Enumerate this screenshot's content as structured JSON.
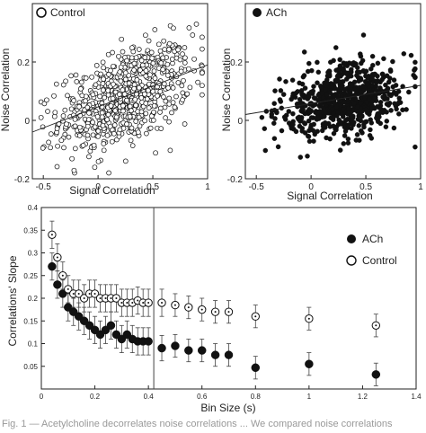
{
  "caption_fragment": "Fig. 1 — Acetylcholine decorrelates noise correlations ... We compared noise correlations",
  "chart_data": [
    {
      "type": "scatter",
      "legend": "Control",
      "marker": "open-circle",
      "xlabel": "Signal Correlation",
      "ylabel": "Noise Correlation",
      "xlim": [
        -0.6,
        1.0
      ],
      "ylim": [
        -0.2,
        0.4
      ],
      "xticks": [
        -0.5,
        0,
        0.5,
        1
      ],
      "yticks": [
        -0.2,
        0,
        0.2
      ],
      "fit_line": {
        "x": [
          -0.6,
          1.0
        ],
        "y": [
          -0.04,
          0.19
        ]
      },
      "points": {
        "n": 700,
        "x_center": 0.25,
        "x_sd": 0.3,
        "y_center": 0.08,
        "y_sd": 0.08,
        "slope": 0.14
      }
    },
    {
      "type": "scatter",
      "legend": "ACh",
      "marker": "filled-circle",
      "xlabel": "Signal Correlation",
      "ylabel": "Noise Correlation",
      "xlim": [
        -0.6,
        1.0
      ],
      "ylim": [
        -0.2,
        0.4
      ],
      "xticks": [
        -0.5,
        0,
        0.5,
        1
      ],
      "yticks": [
        -0.2,
        0,
        0.2
      ],
      "fit_line": {
        "x": [
          -0.6,
          1.0
        ],
        "y": [
          0.02,
          0.12
        ]
      },
      "points": {
        "n": 700,
        "x_center": 0.3,
        "x_sd": 0.28,
        "y_center": 0.07,
        "y_sd": 0.06,
        "slope": 0.06
      }
    },
    {
      "type": "line",
      "xlabel": "Bin Size (s)",
      "ylabel": "Correlations' Slope",
      "xlim": [
        0,
        1.4
      ],
      "ylim": [
        0,
        0.4
      ],
      "xticks": [
        0,
        0.2,
        0.4,
        0.6,
        0.8,
        1,
        1.2,
        1.4
      ],
      "yticks": [
        0.05,
        0.1,
        0.15,
        0.2,
        0.25,
        0.3,
        0.35,
        0.4
      ],
      "vline_x": 0.42,
      "series": [
        {
          "name": "ACh",
          "marker": "filled-circle",
          "x": [
            0.04,
            0.06,
            0.08,
            0.1,
            0.12,
            0.14,
            0.16,
            0.18,
            0.2,
            0.22,
            0.24,
            0.26,
            0.28,
            0.3,
            0.32,
            0.34,
            0.36,
            0.38,
            0.4,
            0.45,
            0.5,
            0.55,
            0.6,
            0.65,
            0.7,
            0.8,
            1.0,
            1.25
          ],
          "y": [
            0.27,
            0.23,
            0.21,
            0.18,
            0.17,
            0.16,
            0.15,
            0.14,
            0.13,
            0.12,
            0.13,
            0.14,
            0.12,
            0.11,
            0.12,
            0.11,
            0.105,
            0.105,
            0.105,
            0.09,
            0.095,
            0.085,
            0.085,
            0.075,
            0.075,
            0.047,
            0.055,
            0.032
          ],
          "err": [
            0.03,
            0.03,
            0.03,
            0.03,
            0.03,
            0.03,
            0.03,
            0.03,
            0.03,
            0.03,
            0.03,
            0.03,
            0.03,
            0.03,
            0.03,
            0.03,
            0.03,
            0.03,
            0.03,
            0.028,
            0.025,
            0.025,
            0.025,
            0.025,
            0.025,
            0.025,
            0.025,
            0.025
          ]
        },
        {
          "name": "Control",
          "marker": "open-circle",
          "x": [
            0.04,
            0.06,
            0.08,
            0.1,
            0.12,
            0.14,
            0.16,
            0.18,
            0.2,
            0.22,
            0.24,
            0.26,
            0.28,
            0.3,
            0.32,
            0.34,
            0.36,
            0.38,
            0.4,
            0.45,
            0.5,
            0.55,
            0.6,
            0.65,
            0.7,
            0.8,
            1.0,
            1.25
          ],
          "y": [
            0.34,
            0.29,
            0.25,
            0.22,
            0.21,
            0.21,
            0.2,
            0.21,
            0.21,
            0.2,
            0.2,
            0.2,
            0.2,
            0.19,
            0.19,
            0.19,
            0.195,
            0.19,
            0.19,
            0.19,
            0.185,
            0.18,
            0.175,
            0.17,
            0.17,
            0.16,
            0.155,
            0.14
          ],
          "err": [
            0.03,
            0.03,
            0.03,
            0.03,
            0.03,
            0.03,
            0.03,
            0.03,
            0.03,
            0.03,
            0.03,
            0.03,
            0.03,
            0.03,
            0.03,
            0.03,
            0.03,
            0.03,
            0.03,
            0.03,
            0.025,
            0.025,
            0.025,
            0.025,
            0.025,
            0.025,
            0.025,
            0.025
          ]
        }
      ]
    }
  ]
}
